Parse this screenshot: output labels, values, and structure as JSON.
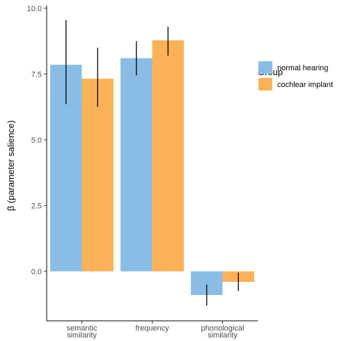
{
  "chart_data": {
    "type": "bar",
    "categories": [
      [
        "semantic",
        "similarity"
      ],
      [
        "frequency"
      ],
      [
        "phonological",
        "similarity"
      ]
    ],
    "series": [
      {
        "name": "normal hearing",
        "color": "#89BDE6",
        "values": [
          7.85,
          8.1,
          -0.9
        ],
        "error_low": [
          6.35,
          7.45,
          -1.3
        ],
        "error_high": [
          9.55,
          8.75,
          -0.5
        ]
      },
      {
        "name": "cochlear implant",
        "color": "#FBB157",
        "values": [
          7.32,
          8.78,
          -0.4
        ],
        "error_low": [
          6.25,
          8.2,
          -0.75
        ],
        "error_high": [
          8.5,
          9.3,
          -0.05
        ]
      }
    ],
    "ylabel": "β (parameter salience)",
    "xlabel": "",
    "ylim": [
      -1.88,
      10.1
    ],
    "yticks": [
      0,
      2.5,
      5,
      7.5,
      10
    ],
    "ytick_labels": [
      "0.0",
      "2.5",
      "5.0",
      "7.5",
      "10.0"
    ],
    "legend": {
      "title": "Group",
      "position": "right",
      "entries": [
        "normal hearing",
        "cochlear implant"
      ]
    },
    "grid": false
  }
}
